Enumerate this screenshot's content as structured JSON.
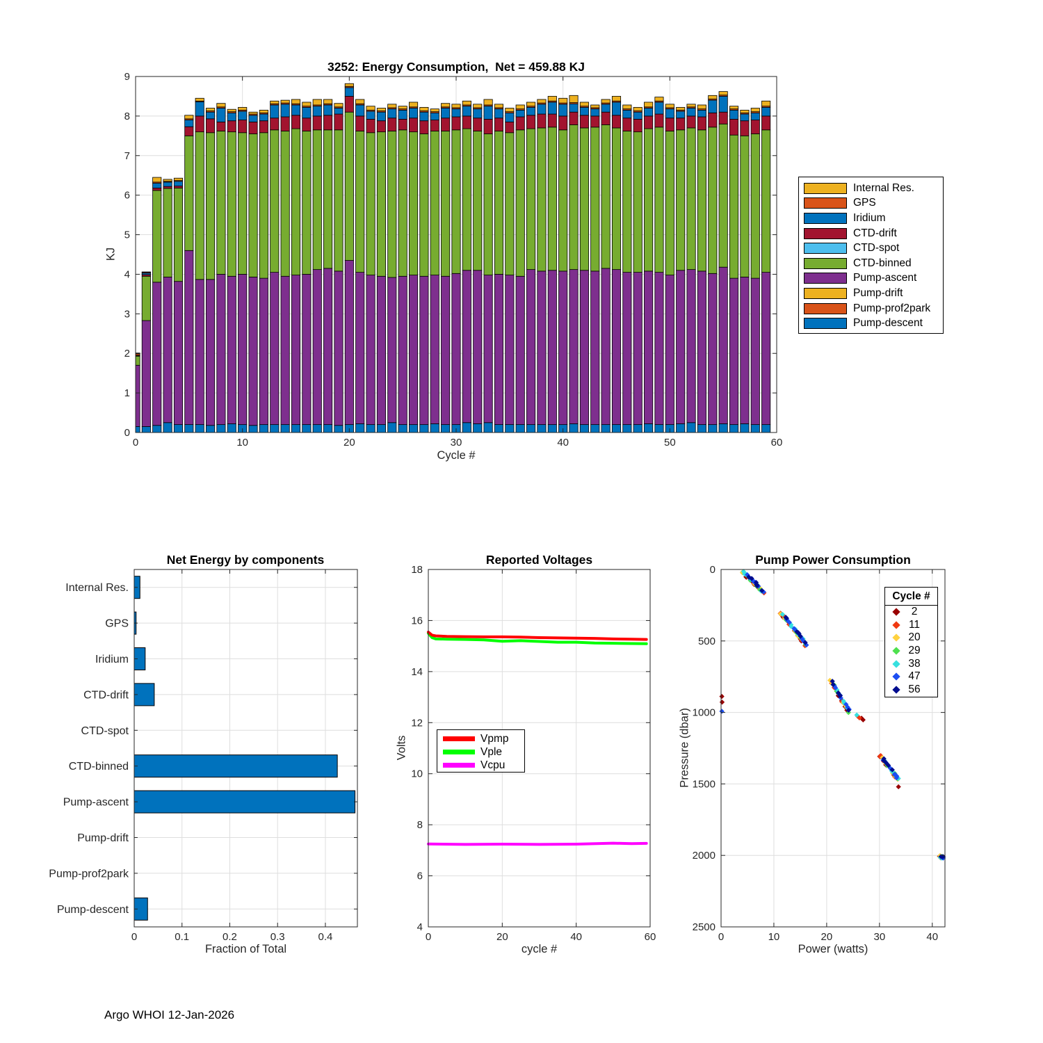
{
  "figure": {
    "footer": "Argo WHOI 12-Jan-2026",
    "background": "#ffffff",
    "axis_color": "#262626",
    "grid_color": "#dedede"
  },
  "chart_data": [
    {
      "id": "energy-consumption",
      "type": "bar",
      "stacked": true,
      "title": "3252: Energy Consumption,  Net = 459.88 KJ",
      "xlabel": "Cycle #",
      "ylabel": "KJ",
      "xlim": [
        0,
        60
      ],
      "ylim": [
        0,
        9
      ],
      "xticks": [
        0,
        10,
        20,
        30,
        40,
        50,
        60
      ],
      "yticks": [
        0,
        1,
        2,
        3,
        4,
        5,
        6,
        7,
        8,
        9
      ],
      "legend_position": "right-outside",
      "legend": [
        {
          "label": "Internal Res.",
          "color": "#EDB120"
        },
        {
          "label": "GPS",
          "color": "#D95319"
        },
        {
          "label": "Iridium",
          "color": "#0072BD"
        },
        {
          "label": "CTD-drift",
          "color": "#A2142F"
        },
        {
          "label": "CTD-spot",
          "color": "#4DBEEE"
        },
        {
          "label": "CTD-binned",
          "color": "#77AC30"
        },
        {
          "label": "Pump-ascent",
          "color": "#7E2F8E"
        },
        {
          "label": "Pump-drift",
          "color": "#EDB120"
        },
        {
          "label": "Pump-prof2park",
          "color": "#D95319"
        },
        {
          "label": "Pump-descent",
          "color": "#0072BD"
        }
      ],
      "stack_order_bottom_to_top": [
        "Pump-descent",
        "Pump-prof2park",
        "Pump-drift",
        "Pump-ascent",
        "CTD-binned",
        "CTD-spot",
        "CTD-drift",
        "Iridium",
        "GPS",
        "Internal Res."
      ],
      "stack_colors": [
        "#0072BD",
        "#D95319",
        "#EDB120",
        "#7E2F8E",
        "#77AC30",
        "#4DBEEE",
        "#A2142F",
        "#0072BD",
        "#D95319",
        "#EDB120"
      ],
      "bars": [
        [
          0.15,
          0,
          0,
          1.55,
          0.23,
          0,
          0.01,
          0.01,
          0.04,
          0.02
        ],
        [
          0.15,
          0,
          0,
          2.68,
          1.12,
          0,
          0.04,
          0.04,
          0.02,
          0.01
        ],
        [
          0.18,
          0,
          0,
          3.62,
          2.32,
          0,
          0.06,
          0.12,
          0.03,
          0.12
        ],
        [
          0.25,
          0,
          0,
          3.68,
          2.24,
          0,
          0.05,
          0.11,
          0.02,
          0.05
        ],
        [
          0.2,
          0,
          0,
          3.62,
          2.36,
          0,
          0.05,
          0.12,
          0.02,
          0.06
        ],
        [
          0.2,
          0,
          0,
          4.4,
          2.9,
          0,
          0.23,
          0.17,
          0.03,
          0.09
        ],
        [
          0.2,
          0,
          0,
          3.67,
          3.73,
          0,
          0.4,
          0.36,
          0.02,
          0.07
        ],
        [
          0.18,
          0,
          0,
          3.69,
          3.71,
          0,
          0.35,
          0.17,
          0.03,
          0.07
        ],
        [
          0.2,
          0,
          0,
          3.8,
          3.62,
          0,
          0.23,
          0.35,
          0.03,
          0.09
        ],
        [
          0.22,
          0,
          0,
          3.73,
          3.65,
          0,
          0.28,
          0.2,
          0.03,
          0.06
        ],
        [
          0.2,
          0,
          0,
          3.8,
          3.58,
          0,
          0.32,
          0.22,
          0.03,
          0.07
        ],
        [
          0.18,
          0,
          0,
          3.75,
          3.62,
          0,
          0.3,
          0.17,
          0.03,
          0.05
        ],
        [
          0.2,
          0,
          0,
          3.7,
          3.68,
          0,
          0.3,
          0.17,
          0.03,
          0.07
        ],
        [
          0.2,
          0,
          0,
          3.85,
          3.6,
          0,
          0.3,
          0.33,
          0.03,
          0.07
        ],
        [
          0.2,
          0,
          0,
          3.75,
          3.67,
          0,
          0.36,
          0.32,
          0.03,
          0.07
        ],
        [
          0.2,
          0,
          0,
          3.78,
          3.7,
          0,
          0.34,
          0.26,
          0.03,
          0.11
        ],
        [
          0.2,
          0,
          0,
          3.8,
          3.62,
          0,
          0.33,
          0.27,
          0.03,
          0.1
        ],
        [
          0.2,
          0,
          0,
          3.92,
          3.53,
          0,
          0.35,
          0.25,
          0.03,
          0.14
        ],
        [
          0.2,
          0,
          0,
          3.95,
          3.5,
          0,
          0.37,
          0.26,
          0.03,
          0.11
        ],
        [
          0.18,
          0,
          0,
          3.9,
          3.57,
          0,
          0.4,
          0.15,
          0.03,
          0.09
        ],
        [
          0.2,
          0,
          0,
          4.15,
          3.75,
          0,
          0.4,
          0.22,
          0.03,
          0.07
        ],
        [
          0.22,
          0,
          0,
          3.83,
          3.57,
          0,
          0.38,
          0.28,
          0.03,
          0.11
        ],
        [
          0.2,
          0,
          0,
          3.78,
          3.6,
          0,
          0.34,
          0.2,
          0.03,
          0.1
        ],
        [
          0.2,
          0,
          0,
          3.75,
          3.65,
          0,
          0.28,
          0.22,
          0.03,
          0.07
        ],
        [
          0.25,
          0,
          0,
          3.67,
          3.7,
          0,
          0.33,
          0.23,
          0.03,
          0.09
        ],
        [
          0.2,
          0,
          0,
          3.75,
          3.7,
          0,
          0.27,
          0.23,
          0.03,
          0.07
        ],
        [
          0.2,
          0,
          0,
          3.78,
          3.62,
          0,
          0.35,
          0.25,
          0.03,
          0.12
        ],
        [
          0.2,
          0,
          0,
          3.75,
          3.6,
          0,
          0.33,
          0.22,
          0.03,
          0.09
        ],
        [
          0.22,
          0,
          0,
          3.76,
          3.64,
          0,
          0.28,
          0.18,
          0.03,
          0.07
        ],
        [
          0.2,
          0,
          0,
          3.75,
          3.67,
          0,
          0.33,
          0.25,
          0.03,
          0.09
        ],
        [
          0.2,
          0,
          0,
          3.82,
          3.63,
          0,
          0.33,
          0.2,
          0.03,
          0.09
        ],
        [
          0.25,
          0,
          0,
          3.85,
          3.58,
          0,
          0.32,
          0.25,
          0.03,
          0.1
        ],
        [
          0.22,
          0,
          0,
          3.88,
          3.52,
          0,
          0.33,
          0.23,
          0.03,
          0.09
        ],
        [
          0.25,
          0,
          0,
          3.73,
          3.57,
          0,
          0.37,
          0.33,
          0.03,
          0.14
        ],
        [
          0.2,
          0,
          0,
          3.8,
          3.62,
          0,
          0.33,
          0.23,
          0.03,
          0.09
        ],
        [
          0.2,
          0,
          0,
          3.78,
          3.6,
          0,
          0.27,
          0.23,
          0.03,
          0.09
        ],
        [
          0.2,
          0,
          0,
          3.75,
          3.7,
          0,
          0.33,
          0.17,
          0.03,
          0.1
        ],
        [
          0.2,
          0,
          0,
          3.92,
          3.56,
          0,
          0.34,
          0.2,
          0.03,
          0.1
        ],
        [
          0.2,
          0,
          0,
          3.88,
          3.62,
          0,
          0.35,
          0.25,
          0.03,
          0.09
        ],
        [
          0.2,
          0,
          0,
          3.9,
          3.62,
          0,
          0.33,
          0.3,
          0.03,
          0.12
        ],
        [
          0.2,
          0,
          0,
          3.88,
          3.57,
          0,
          0.35,
          0.3,
          0.03,
          0.12
        ],
        [
          0.22,
          0,
          0,
          3.9,
          3.66,
          0,
          0.32,
          0.21,
          0.03,
          0.18
        ],
        [
          0.2,
          0,
          0,
          3.9,
          3.6,
          0,
          0.32,
          0.2,
          0.03,
          0.1
        ],
        [
          0.2,
          0,
          0,
          3.88,
          3.64,
          0,
          0.28,
          0.18,
          0.03,
          0.07
        ],
        [
          0.2,
          0,
          0,
          3.95,
          3.63,
          0,
          0.32,
          0.2,
          0.03,
          0.09
        ],
        [
          0.2,
          0,
          0,
          3.92,
          3.58,
          0,
          0.32,
          0.33,
          0.03,
          0.12
        ],
        [
          0.2,
          0,
          0,
          3.85,
          3.57,
          0,
          0.33,
          0.2,
          0.03,
          0.1
        ],
        [
          0.2,
          0,
          0,
          3.85,
          3.55,
          0,
          0.32,
          0.18,
          0.03,
          0.09
        ],
        [
          0.22,
          0,
          0,
          3.86,
          3.6,
          0,
          0.32,
          0.2,
          0.03,
          0.12
        ],
        [
          0.2,
          0,
          0,
          3.85,
          3.67,
          0,
          0.33,
          0.3,
          0.03,
          0.1
        ],
        [
          0.2,
          0,
          0,
          3.78,
          3.64,
          0,
          0.33,
          0.23,
          0.03,
          0.09
        ],
        [
          0.22,
          0,
          0,
          3.88,
          3.55,
          0,
          0.3,
          0.17,
          0.03,
          0.07
        ],
        [
          0.25,
          0,
          0,
          3.87,
          3.58,
          0,
          0.3,
          0.2,
          0.03,
          0.07
        ],
        [
          0.2,
          0,
          0,
          3.88,
          3.57,
          0,
          0.33,
          0.17,
          0.03,
          0.1
        ],
        [
          0.2,
          0,
          0,
          3.82,
          3.7,
          0,
          0.36,
          0.32,
          0.03,
          0.09
        ],
        [
          0.22,
          0,
          0,
          3.96,
          3.62,
          0,
          0.3,
          0.4,
          0.03,
          0.09
        ],
        [
          0.2,
          0,
          0,
          3.7,
          3.62,
          0,
          0.4,
          0.23,
          0.03,
          0.07
        ],
        [
          0.22,
          0,
          0,
          3.71,
          3.57,
          0,
          0.38,
          0.17,
          0.03,
          0.07
        ],
        [
          0.2,
          0,
          0,
          3.7,
          3.65,
          0,
          0.35,
          0.18,
          0.03,
          0.09
        ],
        [
          0.2,
          0,
          0,
          3.85,
          3.6,
          0,
          0.35,
          0.22,
          0.03,
          0.13
        ]
      ]
    },
    {
      "id": "net-energy-by-components",
      "type": "bar",
      "orientation": "horizontal",
      "title": "Net Energy by components",
      "xlabel": "Fraction of Total",
      "categories": [
        "Internal Res.",
        "GPS",
        "Iridium",
        "CTD-drift",
        "CTD-spot",
        "CTD-binned",
        "Pump-ascent",
        "Pump-drift",
        "Pump-prof2park",
        "Pump-descent"
      ],
      "values": [
        0.012,
        0.004,
        0.023,
        0.042,
        0.0005,
        0.425,
        0.462,
        0.0005,
        0.001,
        0.028
      ],
      "xticks": [
        0,
        0.1,
        0.2,
        0.3,
        0.4
      ],
      "xlim": [
        0,
        0.467
      ],
      "bar_color": "#0072BD"
    },
    {
      "id": "reported-voltages",
      "type": "line",
      "title": "Reported Voltages",
      "xlabel": "cycle #",
      "ylabel": "Volts",
      "xlim": [
        0,
        60
      ],
      "ylim": [
        4,
        18
      ],
      "xticks": [
        0,
        20,
        40,
        60
      ],
      "yticks": [
        4,
        6,
        8,
        10,
        12,
        14,
        16,
        18
      ],
      "series": [
        {
          "name": "Vcpu",
          "color": "#FF00FF",
          "points": [
            [
              0,
              7.25
            ],
            [
              10,
              7.23
            ],
            [
              20,
              7.24
            ],
            [
              30,
              7.23
            ],
            [
              40,
              7.24
            ],
            [
              50,
              7.28
            ],
            [
              55,
              7.26
            ],
            [
              59,
              7.27
            ]
          ]
        },
        {
          "name": "Vple",
          "color": "#00FF00",
          "points": [
            [
              0,
              15.5
            ],
            [
              1,
              15.33
            ],
            [
              2,
              15.28
            ],
            [
              5,
              15.27
            ],
            [
              10,
              15.26
            ],
            [
              15,
              15.24
            ],
            [
              20,
              15.19
            ],
            [
              25,
              15.21
            ],
            [
              30,
              15.18
            ],
            [
              35,
              15.15
            ],
            [
              40,
              15.15
            ],
            [
              45,
              15.12
            ],
            [
              50,
              15.11
            ],
            [
              55,
              15.1
            ],
            [
              59,
              15.09
            ]
          ]
        },
        {
          "name": "Vpmp",
          "color": "#FF0000",
          "points": [
            [
              0,
              15.55
            ],
            [
              1,
              15.43
            ],
            [
              2,
              15.4
            ],
            [
              5,
              15.38
            ],
            [
              10,
              15.37
            ],
            [
              15,
              15.36
            ],
            [
              20,
              15.36
            ],
            [
              25,
              15.35
            ],
            [
              30,
              15.33
            ],
            [
              35,
              15.32
            ],
            [
              40,
              15.31
            ],
            [
              45,
              15.3
            ],
            [
              50,
              15.28
            ],
            [
              55,
              15.27
            ],
            [
              59,
              15.26
            ]
          ]
        }
      ],
      "legend_order": [
        "Vpmp",
        "Vple",
        "Vcpu"
      ]
    },
    {
      "id": "pump-power-consumption",
      "type": "scatter",
      "title": "Pump Power Consumption",
      "xlabel": "Power (watts)",
      "ylabel": "Pressure (dbar)",
      "xlim": [
        0,
        42.4
      ],
      "ylim": [
        0,
        2500
      ],
      "y_reversed": true,
      "xticks": [
        0,
        10,
        20,
        30,
        40
      ],
      "yticks": [
        0,
        500,
        1000,
        1500,
        2000,
        2500
      ],
      "legend_title": "Cycle #",
      "cycles": [
        {
          "label": "2",
          "color": "#990000"
        },
        {
          "label": "11",
          "color": "#F03911"
        },
        {
          "label": "20",
          "color": "#FFD23F"
        },
        {
          "label": "29",
          "color": "#4EE04E"
        },
        {
          "label": "38",
          "color": "#36E0DF"
        },
        {
          "label": "47",
          "color": "#1C4EF2"
        },
        {
          "label": "56",
          "color": "#000C8F"
        }
      ],
      "clusters": [
        {
          "x0": 4.0,
          "y0": 10,
          "x1": 8.2,
          "y1": 165,
          "points_per_cycle": 7
        },
        {
          "x0": 11.4,
          "y0": 305,
          "x1": 16.4,
          "y1": 540,
          "points_per_cycle": 8
        },
        {
          "x0": 20.8,
          "y0": 780,
          "x1": 24.3,
          "y1": 1000,
          "points_per_cycle": 6
        },
        {
          "x0": 30.1,
          "y0": 1300,
          "x1": 33.6,
          "y1": 1470,
          "points_per_cycle": 6
        },
        {
          "x0": 41.4,
          "y0": 2003,
          "x1": 41.9,
          "y1": 2016,
          "points_per_cycle": 3
        }
      ],
      "extra_points": {
        "2": [
          [
            26.6,
            1040
          ],
          [
            26.9,
            1052
          ],
          [
            33.6,
            1520
          ],
          [
            0.15,
            888
          ],
          [
            0.2,
            928
          ]
        ],
        "11": [
          [
            11.2,
            308
          ],
          [
            25.9,
            1028
          ],
          [
            26.2,
            1038
          ]
        ],
        "38": [
          [
            25.7,
            1018
          ]
        ],
        "47": [
          [
            0.15,
            992
          ]
        ]
      }
    }
  ]
}
